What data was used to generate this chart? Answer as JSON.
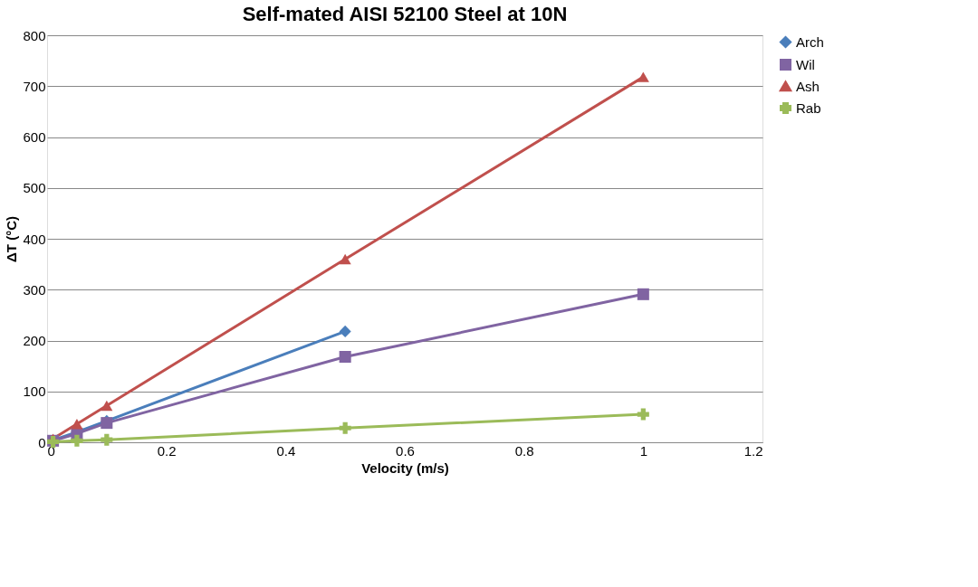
{
  "chart_data": {
    "type": "line",
    "title": "Self-mated AISI 52100 Steel at 10N",
    "xlabel": "Velocity (m/s)",
    "ylabel": "ΔT (°C)",
    "xlim": [
      0,
      1.2
    ],
    "xticks": [
      0,
      0.2,
      0.4,
      0.6,
      0.8,
      1,
      1.2
    ],
    "ylim": [
      0,
      800
    ],
    "yticks": [
      0,
      100,
      200,
      300,
      400,
      500,
      600,
      700,
      800
    ],
    "grid": "y",
    "legend": "right",
    "series": [
      {
        "name": "Arch",
        "color": "#4a7ebb",
        "marker": "diamond",
        "x": [
          0.01,
          0.05,
          0.1,
          0.5
        ],
        "values": [
          4,
          20,
          42,
          218
        ]
      },
      {
        "name": "Wil",
        "color": "#8064a2",
        "marker": "square",
        "x": [
          0.01,
          0.05,
          0.1,
          0.5,
          1
        ],
        "values": [
          3,
          17,
          38,
          168,
          291
        ]
      },
      {
        "name": "Ash",
        "color": "#c0504d",
        "marker": "triangle",
        "x": [
          0.01,
          0.05,
          0.1,
          0.5,
          1
        ],
        "values": [
          7,
          36,
          72,
          360,
          718
        ]
      },
      {
        "name": "Rab",
        "color": "#9bbb59",
        "marker": "cross",
        "x": [
          0.01,
          0.05,
          0.1,
          0.5,
          1
        ],
        "values": [
          1,
          3,
          5,
          28,
          55
        ]
      }
    ]
  }
}
